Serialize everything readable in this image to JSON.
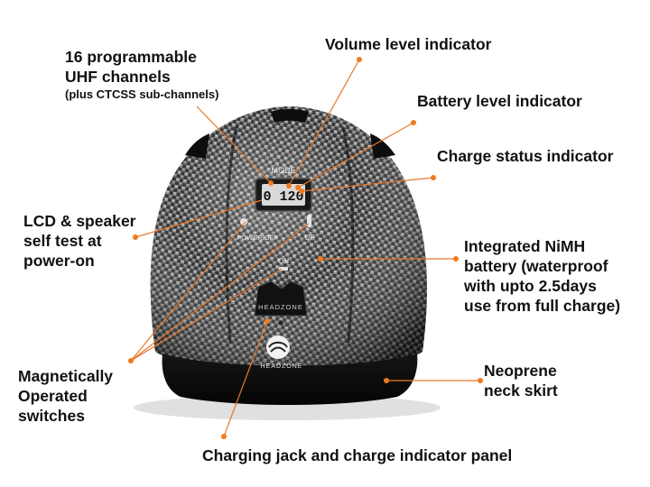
{
  "annotations": {
    "channels": {
      "line1": "16 programmable",
      "line2": "UHF channels",
      "line3": "(plus CTCSS sub-channels)"
    },
    "volume": "Volume level indicator",
    "battery": "Battery level indicator",
    "charge_status": "Charge status indicator",
    "lcd": {
      "line1": "LCD & speaker",
      "line2": "self test at",
      "line3": "power-on"
    },
    "nimh": {
      "line1": "Integrated NiMH",
      "line2": "battery (waterproof",
      "line3": "with upto 2.5days",
      "line4": "use from full charge)"
    },
    "magnetic": {
      "line1": "Magnetically",
      "line2": "Operated",
      "line3": "switches"
    },
    "neoprene": {
      "line1": "Neoprene",
      "line2": "neck skirt"
    },
    "charging": "Charging jack and charge indicator panel"
  },
  "helmet": {
    "mode_label": "MODE",
    "lcd_value": "0 120",
    "power_label": "POWER/OFF",
    "up_label": "UP",
    "on_label": "ON",
    "panel_brand": "HEADZONE",
    "logo_text": "HEADZONE"
  },
  "colors": {
    "leader": "#E8782A",
    "dot": "#F07A1E",
    "label": "#111111",
    "helmet": "#2a2a2a"
  }
}
